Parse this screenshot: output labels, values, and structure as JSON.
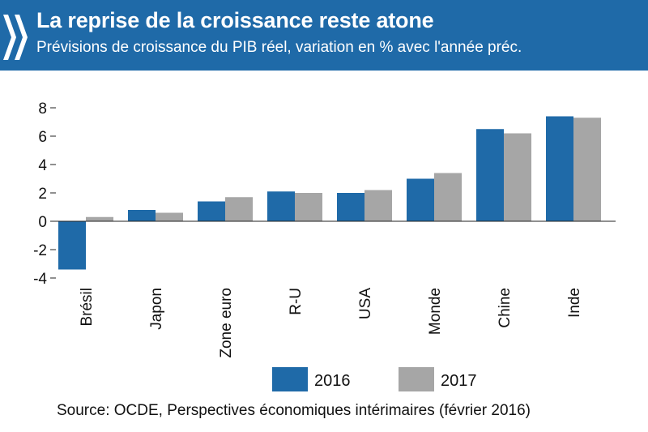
{
  "header": {
    "title": "La reprise de la croissance reste atone",
    "subtitle": "Prévisions de croissance du PIB réel, variation en % avec l'année préc.",
    "background_color": "#1f6aa8",
    "logo_icon": "oecd-chevrons-icon"
  },
  "chart_data": {
    "type": "bar",
    "categories": [
      "Brésil",
      "Japon",
      "Zone euro",
      "R-U",
      "USA",
      "Monde",
      "Chine",
      "Inde"
    ],
    "series": [
      {
        "name": "2016",
        "color": "#1f6aa8",
        "values": [
          -3.4,
          0.8,
          1.4,
          2.1,
          2.0,
          3.0,
          6.5,
          7.4
        ]
      },
      {
        "name": "2017",
        "color": "#a6a6a6",
        "values": [
          0.3,
          0.6,
          1.7,
          2.0,
          2.2,
          3.4,
          6.2,
          7.3
        ]
      }
    ],
    "yticks": [
      "8",
      "6",
      "4",
      "2",
      "0",
      "-2",
      "-4"
    ],
    "ylim": [
      -4,
      8
    ],
    "grid": false,
    "legend_position": "bottom"
  },
  "source": "Source: OCDE, Perspectives économiques intérimaires (février 2016)"
}
